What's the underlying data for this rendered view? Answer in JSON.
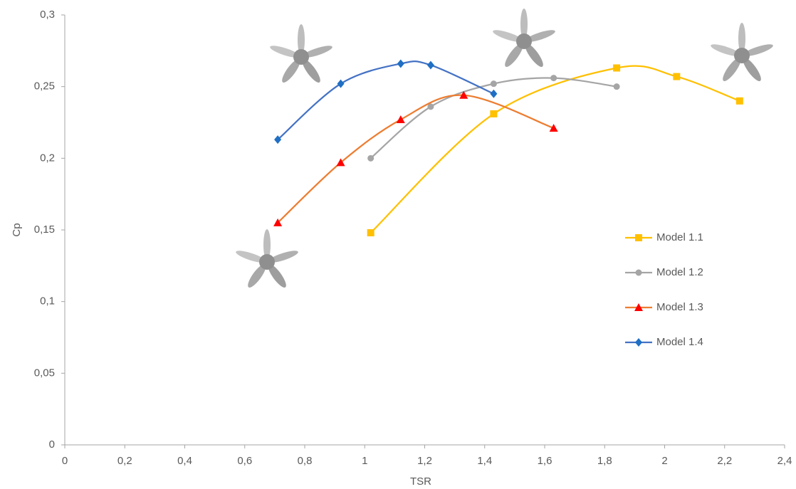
{
  "chart_data": {
    "type": "line",
    "x_label": "TSR",
    "y_label": "Cp",
    "xlim": [
      0,
      2.4
    ],
    "ylim": [
      0,
      0.3
    ],
    "xticks": [
      0,
      {
        "value": 0.2,
        "label": "0,2"
      },
      {
        "value": 0.4,
        "label": "0,4"
      },
      {
        "value": 0.6,
        "label": "0,6"
      },
      {
        "value": 0.8,
        "label": "0,8"
      },
      1,
      {
        "value": 1.2,
        "label": "1,2"
      },
      {
        "value": 1.4,
        "label": "1,4"
      },
      {
        "value": 1.6,
        "label": "1,6"
      },
      {
        "value": 1.8,
        "label": "1,8"
      },
      2,
      {
        "value": 2.2,
        "label": "2,2"
      },
      {
        "value": 2.4,
        "label": "2,4"
      }
    ],
    "yticks": [
      0,
      {
        "value": 0.05,
        "label": "0,05"
      },
      {
        "value": 0.1,
        "label": "0,1"
      },
      {
        "value": 0.15,
        "label": "0,15"
      },
      {
        "value": 0.2,
        "label": "0,2"
      },
      {
        "value": 0.25,
        "label": "0,25"
      },
      {
        "value": 0.3,
        "label": "0,3"
      }
    ],
    "grid": false,
    "legend": "right",
    "smooth": true,
    "series": [
      {
        "name": "Model 1.1",
        "color": "#FFC000",
        "marker_color": "#FFC000",
        "marker": "square",
        "x": [
          1.02,
          1.43,
          1.84,
          2.04,
          2.25
        ],
        "values": [
          0.148,
          0.231,
          0.263,
          0.257,
          0.24
        ]
      },
      {
        "name": "Model 1.2",
        "color": "#A5A5A5",
        "marker_color": "#A5A5A5",
        "marker": "circle",
        "x": [
          1.02,
          1.22,
          1.43,
          1.63,
          1.84
        ],
        "values": [
          0.2,
          0.236,
          0.252,
          0.256,
          0.25
        ]
      },
      {
        "name": "Model 1.3",
        "color": "#ED7D31",
        "marker_color": "#FF0000",
        "marker": "triangle",
        "x": [
          0.71,
          0.92,
          1.12,
          1.33,
          1.63
        ],
        "values": [
          0.155,
          0.197,
          0.227,
          0.244,
          0.221
        ]
      },
      {
        "name": "Model 1.4",
        "color": "#4472C4",
        "marker_color": "#1F6FC4",
        "marker": "diamond",
        "x": [
          0.71,
          0.92,
          1.12,
          1.22,
          1.43
        ],
        "values": [
          0.213,
          0.252,
          0.266,
          0.265,
          0.245
        ]
      }
    ]
  }
}
